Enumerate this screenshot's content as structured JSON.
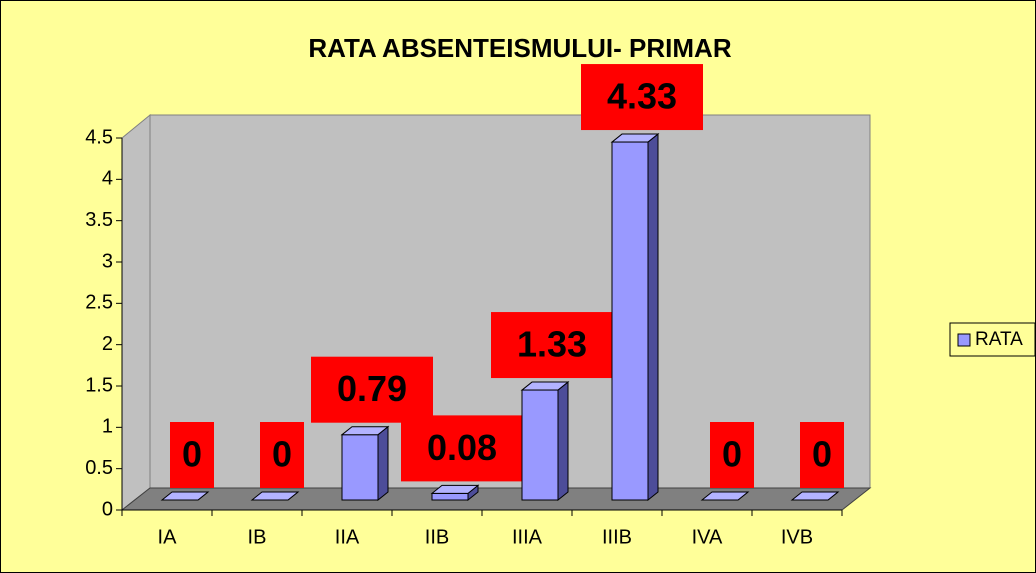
{
  "chart_data": {
    "type": "bar3d",
    "title": "RATA ABSENTEISMULUI- PRIMAR",
    "categories": [
      "IA",
      "IB",
      "IIA",
      "IIB",
      "IIIA",
      "IIIB",
      "IVA",
      "IVB"
    ],
    "series": [
      {
        "name": "RATA",
        "color": "#9999ff",
        "values": [
          0,
          0,
          0.79,
          0.08,
          1.33,
          4.33,
          0,
          0
        ]
      }
    ],
    "ylim": [
      0,
      4.5
    ],
    "yticks": [
      0,
      0.5,
      1,
      1.5,
      2,
      2.5,
      3,
      3.5,
      4,
      4.5
    ],
    "legend": "right"
  }
}
